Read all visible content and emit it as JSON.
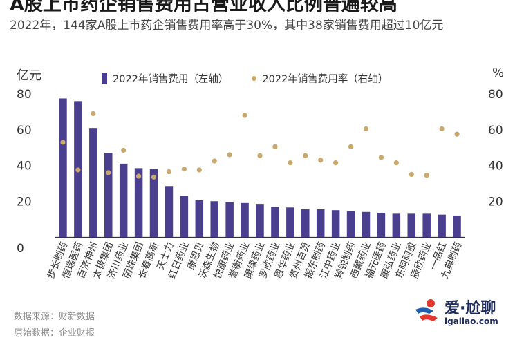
{
  "header": {
    "title": "A股上市药企销售费用占营业收入比例普遍较高",
    "subtitle": "2022年，144家A股上市药企销售费用率高于30%，其中38家销售费用超过10亿元"
  },
  "footer": {
    "source": "数据来源：财新数据",
    "origin": "原始数据：企业财报"
  },
  "logo": {
    "name": "爱·尬聊",
    "url": "igaliao.com"
  },
  "colors": {
    "bar": "#4a3e8f",
    "dot": "#c9a86c",
    "axis": "#333333",
    "text": "#333333"
  },
  "chart_data": {
    "type": "bar",
    "title": "A股上市药企销售费用占营业收入比例普遍较高",
    "subtitle": "2022年，144家A股上市药企销售费用率高于30%，其中38家销售费用超过10亿元",
    "left_unit": "亿元",
    "right_unit": "%",
    "ylim": [
      0,
      80
    ],
    "y2lim": [
      0,
      80
    ],
    "yticks": [
      0,
      20,
      40,
      60,
      80
    ],
    "y2ticks": [
      20,
      40,
      60,
      80
    ],
    "legend_position": "top",
    "grid": false,
    "categories": [
      "步长制药",
      "恒瑞医药",
      "百济神州",
      "太极集团",
      "济川药业",
      "丽珠集团",
      "长春高新",
      "天士力",
      "红日药业",
      "康恩贝",
      "沃森生物",
      "悦康药业",
      "誉衡药业",
      "康缘药业",
      "罗欣药业",
      "恩华药业",
      "贵州百灵",
      "振东制药",
      "江中药业",
      "羚锐制药",
      "西藏药业",
      "福元医药",
      "康弘药业",
      "东阿阿胶",
      "辰欣药业",
      "一品红",
      "九典制药"
    ],
    "series": [
      {
        "name": "2022年销售费用（左轴）",
        "type": "bar",
        "axis": "left",
        "values": [
          77.5,
          76,
          61,
          47,
          41,
          38.5,
          38,
          28.5,
          23,
          20.5,
          20,
          19.5,
          19,
          18.5,
          17,
          16.5,
          15.5,
          15.5,
          15,
          14.5,
          14,
          13.5,
          13,
          13,
          13,
          12.5,
          12
        ]
      },
      {
        "name": "2022年销售费用率（右轴）",
        "type": "scatter",
        "axis": "right",
        "values": [
          53,
          37.5,
          69,
          36,
          48.5,
          34,
          33.5,
          36.5,
          38,
          37.5,
          42.5,
          46,
          68,
          45.5,
          50.5,
          41.5,
          45.5,
          43,
          41.5,
          50.5,
          60.5,
          44.5,
          41.5,
          35,
          34.5,
          60.5,
          57.5
        ]
      }
    ]
  }
}
